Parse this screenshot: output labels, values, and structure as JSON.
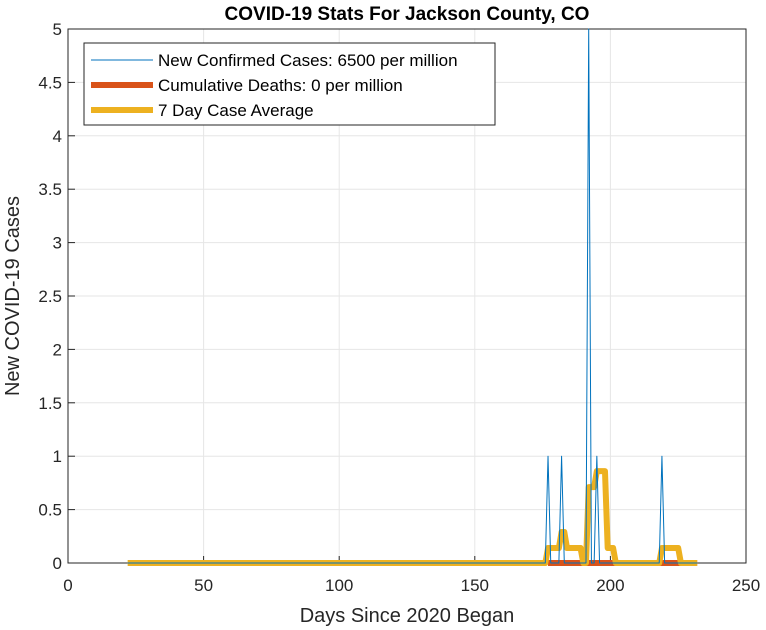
{
  "chart_data": {
    "type": "line",
    "title": "COVID-19 Stats For Jackson County, CO",
    "xlabel": "Days Since 2020 Began",
    "ylabel": "New COVID-19 Cases",
    "xlim": [
      0,
      250
    ],
    "ylim": [
      0,
      5
    ],
    "xticks": [
      0,
      50,
      100,
      150,
      200,
      250
    ],
    "xtick_labels": [
      "0",
      "50",
      "100",
      "150",
      "200",
      "250"
    ],
    "yticks": [
      0,
      0.5,
      1,
      1.5,
      2,
      2.5,
      3,
      3.5,
      4,
      4.5,
      5
    ],
    "ytick_labels": [
      "0",
      "0.5",
      "1",
      "1.5",
      "2",
      "2.5",
      "3",
      "3.5",
      "4",
      "4.5",
      "5"
    ],
    "grid": true,
    "legend_position": "top-left",
    "series": [
      {
        "name": "New Confirmed Cases: 6500 per million",
        "color": "#0072BD",
        "style": "thin",
        "points": [
          [
            22,
            0
          ],
          [
            176,
            0
          ],
          [
            177,
            1
          ],
          [
            178,
            0
          ],
          [
            181,
            0
          ],
          [
            182,
            1
          ],
          [
            183,
            0
          ],
          [
            191,
            0
          ],
          [
            192,
            5
          ],
          [
            193,
            0
          ],
          [
            194,
            0
          ],
          [
            195,
            1
          ],
          [
            196,
            0
          ],
          [
            218,
            0
          ],
          [
            219,
            1
          ],
          [
            220,
            0
          ],
          [
            232,
            0
          ]
        ]
      },
      {
        "name": "Cumulative Deaths: 0 per million",
        "color": "#D95319",
        "style": "thick",
        "points": [
          [
            177,
            0
          ],
          [
            232,
            0
          ]
        ]
      },
      {
        "name": "7 Day Case Average",
        "color": "#EDB120",
        "style": "thick",
        "points": [
          [
            22,
            0
          ],
          [
            176,
            0
          ],
          [
            177,
            0.14
          ],
          [
            181,
            0.14
          ],
          [
            182,
            0.29
          ],
          [
            183,
            0.29
          ],
          [
            184,
            0.14
          ],
          [
            189,
            0.14
          ],
          [
            190,
            0
          ],
          [
            191,
            0
          ],
          [
            192,
            0.71
          ],
          [
            194,
            0.71
          ],
          [
            195,
            0.86
          ],
          [
            198,
            0.86
          ],
          [
            199,
            0.14
          ],
          [
            201,
            0.14
          ],
          [
            202,
            0
          ],
          [
            218,
            0
          ],
          [
            219,
            0.14
          ],
          [
            225,
            0.14
          ],
          [
            226,
            0
          ],
          [
            232,
            0
          ]
        ]
      }
    ]
  }
}
